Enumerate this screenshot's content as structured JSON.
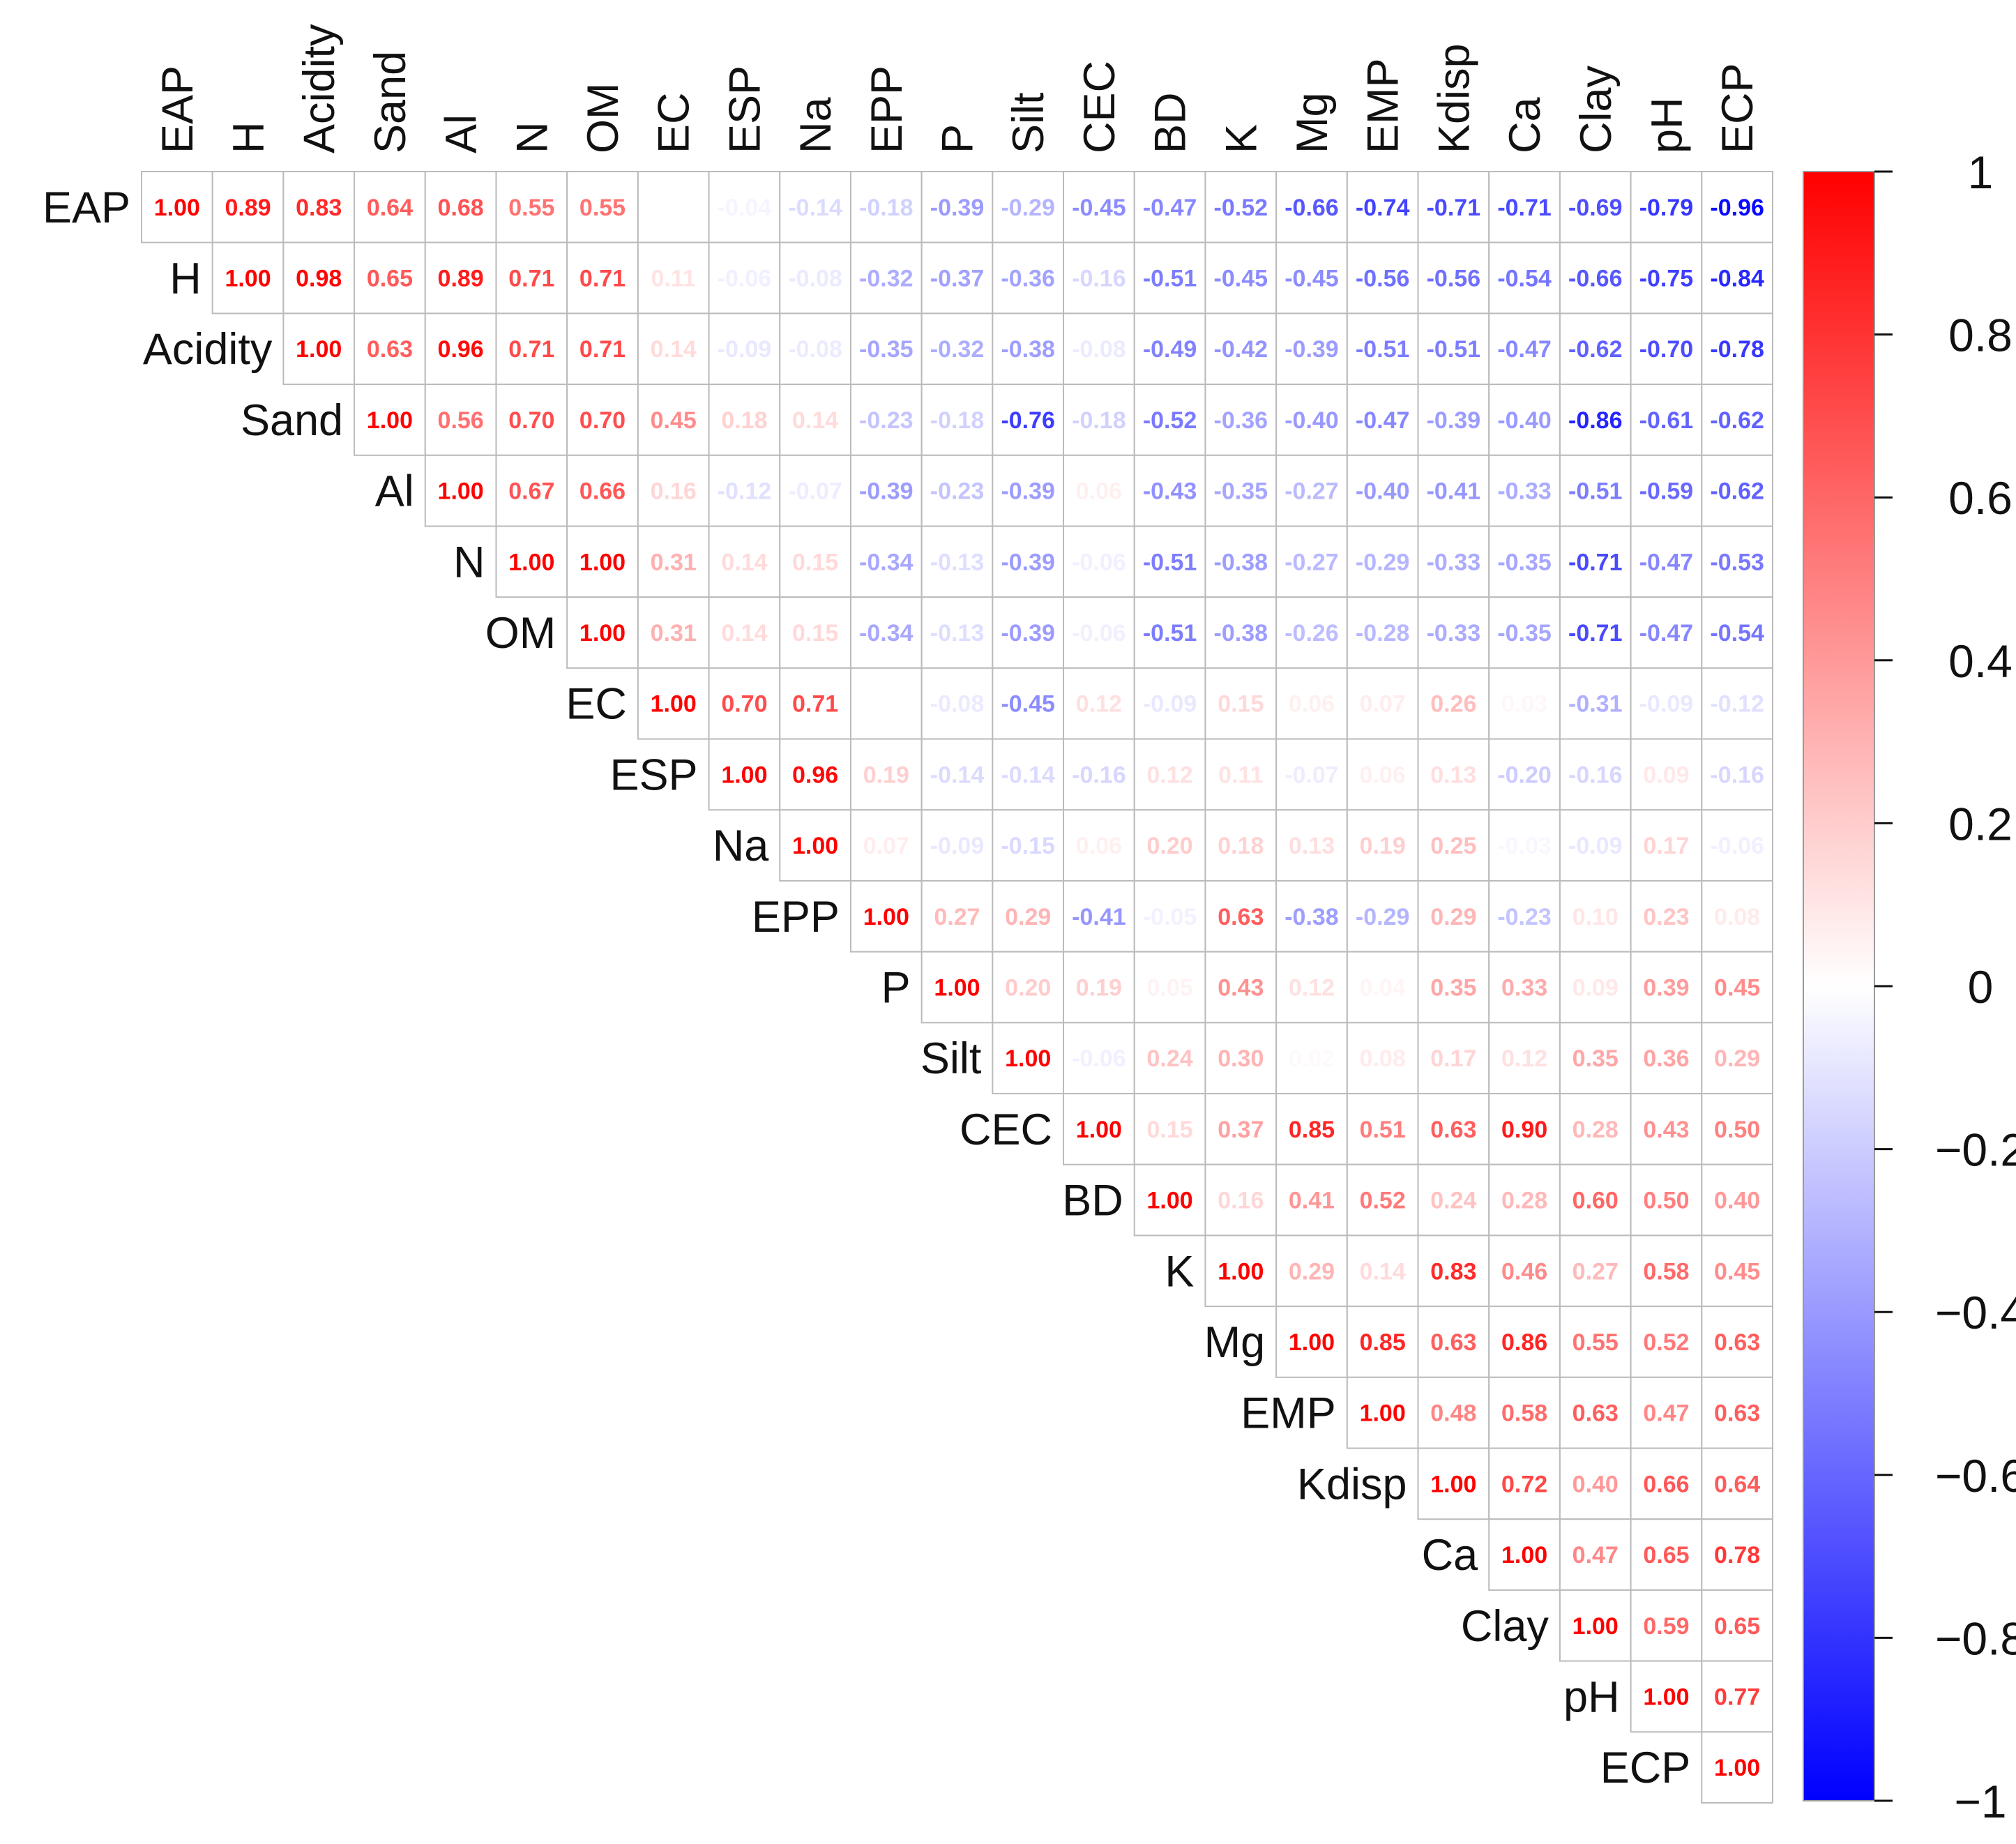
{
  "chart_data": {
    "type": "heatmap",
    "subtype": "correlation-matrix-upper-triangle",
    "title": "",
    "variables": [
      "EAP",
      "H",
      "Acidity",
      "Sand",
      "Al",
      "N",
      "OM",
      "EC",
      "ESP",
      "Na",
      "EPP",
      "P",
      "Silt",
      "CEC",
      "BD",
      "K",
      "Mg",
      "EMP",
      "Kdisp",
      "Ca",
      "Clay",
      "pH",
      "ECP"
    ],
    "matrix": [
      [
        1.0,
        0.89,
        0.83,
        0.64,
        0.68,
        0.55,
        0.55,
        0.0,
        -0.04,
        -0.14,
        -0.18,
        -0.39,
        -0.29,
        -0.45,
        -0.47,
        -0.52,
        -0.66,
        -0.74,
        -0.71,
        -0.71,
        -0.69,
        -0.79,
        -0.96
      ],
      [
        null,
        1.0,
        0.98,
        0.65,
        0.89,
        0.71,
        0.71,
        0.11,
        -0.06,
        -0.08,
        -0.32,
        -0.37,
        -0.36,
        -0.16,
        -0.51,
        -0.45,
        -0.45,
        -0.56,
        -0.56,
        -0.54,
        -0.66,
        -0.75,
        -0.84
      ],
      [
        null,
        null,
        1.0,
        0.63,
        0.96,
        0.71,
        0.71,
        0.14,
        -0.09,
        -0.08,
        -0.35,
        -0.32,
        -0.38,
        -0.08,
        -0.49,
        -0.42,
        -0.39,
        -0.51,
        -0.51,
        -0.47,
        -0.62,
        -0.7,
        -0.78
      ],
      [
        null,
        null,
        null,
        1.0,
        0.56,
        0.7,
        0.7,
        0.45,
        0.18,
        0.14,
        -0.23,
        -0.18,
        -0.76,
        -0.18,
        -0.52,
        -0.36,
        -0.4,
        -0.47,
        -0.39,
        -0.4,
        -0.86,
        -0.61,
        -0.62
      ],
      [
        null,
        null,
        null,
        null,
        1.0,
        0.67,
        0.66,
        0.16,
        -0.12,
        -0.07,
        -0.39,
        -0.23,
        -0.39,
        0.06,
        -0.43,
        -0.35,
        -0.27,
        -0.4,
        -0.41,
        -0.33,
        -0.51,
        -0.59,
        -0.62
      ],
      [
        null,
        null,
        null,
        null,
        null,
        1.0,
        1.0,
        0.31,
        0.14,
        0.15,
        -0.34,
        -0.13,
        -0.39,
        -0.06,
        -0.51,
        -0.38,
        -0.27,
        -0.29,
        -0.33,
        -0.35,
        -0.71,
        -0.47,
        -0.53
      ],
      [
        null,
        null,
        null,
        null,
        null,
        null,
        1.0,
        0.31,
        0.14,
        0.15,
        -0.34,
        -0.13,
        -0.39,
        -0.06,
        -0.51,
        -0.38,
        -0.26,
        -0.28,
        -0.33,
        -0.35,
        -0.71,
        -0.47,
        -0.54
      ],
      [
        null,
        null,
        null,
        null,
        null,
        null,
        null,
        1.0,
        0.7,
        0.71,
        0.0,
        -0.08,
        -0.45,
        0.12,
        -0.09,
        0.15,
        0.06,
        0.07,
        0.26,
        0.03,
        -0.31,
        -0.09,
        -0.12
      ],
      [
        null,
        null,
        null,
        null,
        null,
        null,
        null,
        null,
        1.0,
        0.96,
        0.19,
        -0.14,
        -0.14,
        -0.16,
        0.12,
        0.11,
        -0.07,
        0.06,
        0.13,
        -0.2,
        -0.16,
        0.09,
        -0.16
      ],
      [
        null,
        null,
        null,
        null,
        null,
        null,
        null,
        null,
        null,
        1.0,
        0.07,
        -0.09,
        -0.15,
        0.06,
        0.2,
        0.18,
        0.13,
        0.19,
        0.25,
        -0.03,
        -0.09,
        0.17,
        -0.06
      ],
      [
        null,
        null,
        null,
        null,
        null,
        null,
        null,
        null,
        null,
        null,
        1.0,
        0.27,
        0.29,
        -0.41,
        -0.05,
        0.63,
        -0.38,
        -0.29,
        0.29,
        -0.23,
        0.1,
        0.23,
        0.08
      ],
      [
        null,
        null,
        null,
        null,
        null,
        null,
        null,
        null,
        null,
        null,
        null,
        1.0,
        0.2,
        0.19,
        0.05,
        0.43,
        0.12,
        0.04,
        0.35,
        0.33,
        0.09,
        0.39,
        0.45
      ],
      [
        null,
        null,
        null,
        null,
        null,
        null,
        null,
        null,
        null,
        null,
        null,
        null,
        1.0,
        -0.06,
        0.24,
        0.3,
        0.02,
        0.08,
        0.17,
        0.12,
        0.35,
        0.36,
        0.29
      ],
      [
        null,
        null,
        null,
        null,
        null,
        null,
        null,
        null,
        null,
        null,
        null,
        null,
        null,
        1.0,
        0.15,
        0.37,
        0.85,
        0.51,
        0.63,
        0.9,
        0.28,
        0.43,
        0.5
      ],
      [
        null,
        null,
        null,
        null,
        null,
        null,
        null,
        null,
        null,
        null,
        null,
        null,
        null,
        null,
        1.0,
        0.16,
        0.41,
        0.52,
        0.24,
        0.28,
        0.6,
        0.5,
        0.4
      ],
      [
        null,
        null,
        null,
        null,
        null,
        null,
        null,
        null,
        null,
        null,
        null,
        null,
        null,
        null,
        null,
        1.0,
        0.29,
        0.14,
        0.83,
        0.46,
        0.27,
        0.58,
        0.45
      ],
      [
        null,
        null,
        null,
        null,
        null,
        null,
        null,
        null,
        null,
        null,
        null,
        null,
        null,
        null,
        null,
        null,
        1.0,
        0.85,
        0.63,
        0.86,
        0.55,
        0.52,
        0.63
      ],
      [
        null,
        null,
        null,
        null,
        null,
        null,
        null,
        null,
        null,
        null,
        null,
        null,
        null,
        null,
        null,
        null,
        null,
        1.0,
        0.48,
        0.58,
        0.63,
        0.47,
        0.63
      ],
      [
        null,
        null,
        null,
        null,
        null,
        null,
        null,
        null,
        null,
        null,
        null,
        null,
        null,
        null,
        null,
        null,
        null,
        null,
        1.0,
        0.72,
        0.4,
        0.66,
        0.64
      ],
      [
        null,
        null,
        null,
        null,
        null,
        null,
        null,
        null,
        null,
        null,
        null,
        null,
        null,
        null,
        null,
        null,
        null,
        null,
        null,
        1.0,
        0.47,
        0.65,
        0.78
      ],
      [
        null,
        null,
        null,
        null,
        null,
        null,
        null,
        null,
        null,
        null,
        null,
        null,
        null,
        null,
        null,
        null,
        null,
        null,
        null,
        null,
        1.0,
        0.59,
        0.65
      ],
      [
        null,
        null,
        null,
        null,
        null,
        null,
        null,
        null,
        null,
        null,
        null,
        null,
        null,
        null,
        null,
        null,
        null,
        null,
        null,
        null,
        null,
        1.0,
        0.77
      ],
      [
        null,
        null,
        null,
        null,
        null,
        null,
        null,
        null,
        null,
        null,
        null,
        null,
        null,
        null,
        null,
        null,
        null,
        null,
        null,
        null,
        null,
        null,
        1.0
      ]
    ],
    "value_format_decimals": 2,
    "colorbar": {
      "range": [
        -1,
        1
      ],
      "ticks": [
        1,
        0.8,
        0.6,
        0.4,
        0.2,
        0,
        -0.2,
        -0.4,
        -0.6,
        -0.8,
        -1
      ],
      "tick_labels": [
        "1",
        "0.8",
        "0.6",
        "0.4",
        "0.2",
        "0",
        "−0.2",
        "−0.4",
        "−0.6",
        "−0.8",
        "−1"
      ],
      "placement": "right"
    },
    "colors": {
      "positive": "#ff0000",
      "zero": "#ffffff",
      "negative": "#0000ff",
      "grid": "#bbbbbb",
      "label": "#111111"
    }
  }
}
